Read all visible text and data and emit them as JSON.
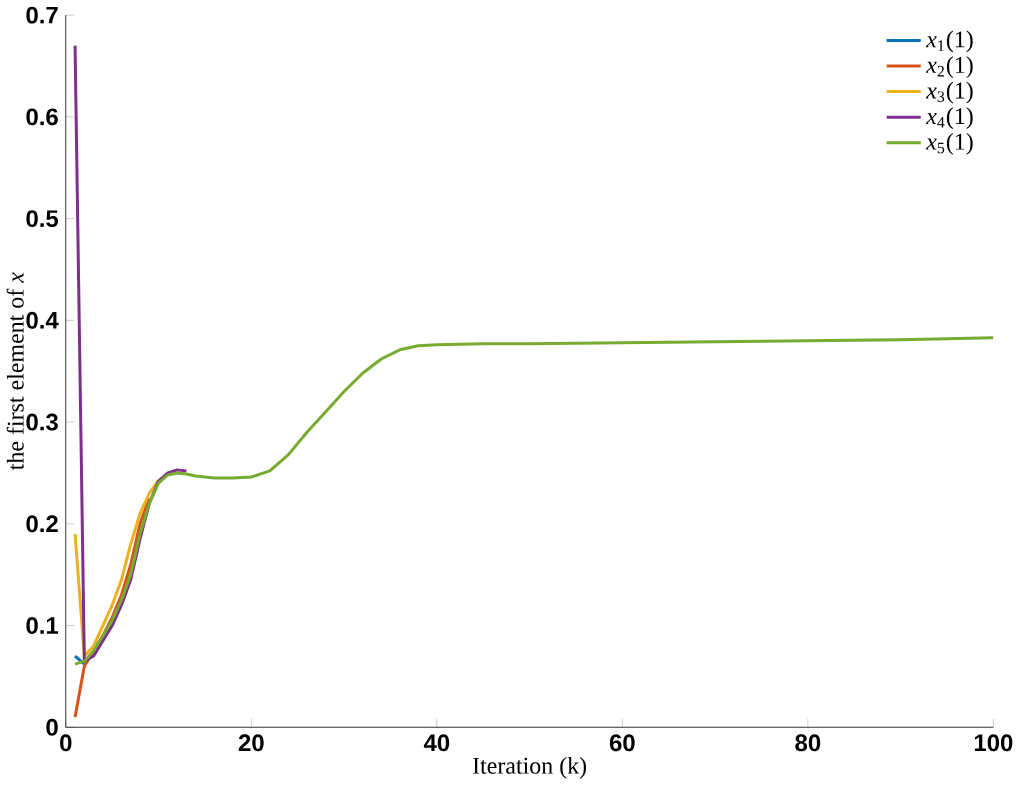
{
  "chart_data": {
    "type": "line",
    "xlabel": "Iteration (k)",
    "ylabel": "the first element of *x*",
    "x": [
      1,
      2,
      3,
      4,
      5,
      6,
      7,
      8,
      9,
      10,
      11,
      12,
      13,
      14,
      16,
      18,
      20,
      22,
      24,
      26,
      28,
      30,
      32,
      34,
      36,
      38,
      40,
      45,
      50,
      60,
      70,
      80,
      90,
      100
    ],
    "series": [
      {
        "name": "*x*$_{1}$(1)",
        "color": "#0072bd",
        "values": [
          0.07,
          0.062,
          null,
          null,
          null,
          null,
          null,
          null,
          null,
          null,
          null,
          null,
          null,
          null,
          null,
          null,
          null,
          null,
          null,
          null,
          null,
          null,
          null,
          null,
          null,
          null,
          null,
          null,
          null,
          null,
          null,
          null,
          null,
          null
        ]
      },
      {
        "name": "*x*$_{2}$(1)",
        "color": "#d95319",
        "values": [
          0.01,
          0.06,
          0.075,
          0.09,
          0.108,
          0.13,
          0.16,
          0.2,
          0.225,
          null,
          null,
          null,
          null,
          null,
          null,
          null,
          null,
          null,
          null,
          null,
          null,
          null,
          null,
          null,
          null,
          null,
          null,
          null,
          null,
          null,
          null,
          null,
          null,
          null
        ]
      },
      {
        "name": "*x*$_{3}$(1)",
        "color": "#edb120",
        "values": [
          0.19,
          0.07,
          0.08,
          0.1,
          0.12,
          0.145,
          0.18,
          0.21,
          0.23,
          0.243,
          null,
          null,
          null,
          null,
          null,
          null,
          null,
          null,
          null,
          null,
          null,
          null,
          null,
          null,
          null,
          null,
          null,
          null,
          null,
          null,
          null,
          null,
          null,
          null
        ]
      },
      {
        "name": "*x*$_{4}$(1)",
        "color": "#7e2f8e",
        "values": [
          0.67,
          0.065,
          0.07,
          0.085,
          0.1,
          0.12,
          0.145,
          0.185,
          0.22,
          0.242,
          0.25,
          0.253,
          0.252,
          null,
          null,
          null,
          null,
          null,
          null,
          null,
          null,
          null,
          null,
          null,
          null,
          null,
          null,
          null,
          null,
          null,
          null,
          null,
          null,
          null
        ]
      },
      {
        "name": "*x*$_{5}$(1)",
        "color": "#77ac30",
        "values": [
          0.062,
          0.065,
          0.075,
          0.09,
          0.105,
          0.125,
          0.15,
          0.19,
          0.22,
          0.24,
          0.248,
          0.25,
          0.249,
          0.247,
          0.245,
          0.245,
          0.246,
          0.252,
          0.268,
          0.29,
          0.31,
          0.33,
          0.348,
          0.362,
          0.371,
          0.375,
          0.376,
          0.377,
          0.377,
          0.378,
          0.379,
          0.38,
          0.381,
          0.383
        ]
      }
    ],
    "xlim": [
      0,
      100
    ],
    "ylim": [
      0,
      0.7
    ],
    "xticks": [
      0,
      20,
      40,
      60,
      80,
      100
    ],
    "yticks": [
      0,
      0.1,
      0.2,
      0.3,
      0.4,
      0.5,
      0.6,
      0.7
    ],
    "grid": false,
    "legend": "top right",
    "marker": "none",
    "line_style": "solid"
  }
}
